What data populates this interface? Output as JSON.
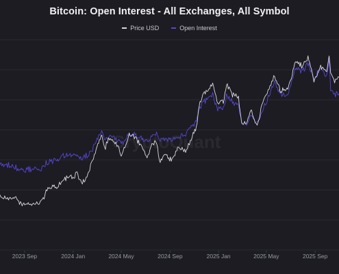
{
  "chart_data": {
    "type": "line",
    "title": "Bitcoin: Open Interest - All Exchanges, All Symbol",
    "watermark": "CryptoQuant",
    "legend_position": "top-center",
    "grid": "horizontal",
    "x_tick_labels": [
      "2023 Sep",
      "2024 Jan",
      "2024 May",
      "2024 Sep",
      "2025 Jan",
      "2025 May",
      "2025 Sep"
    ],
    "x_range": [
      "2023-07-01",
      "2025-10-31"
    ],
    "series": [
      {
        "name": "Price USD",
        "color": "#d9d9de",
        "x": [
          "2023-07-01",
          "2023-07-20",
          "2023-08-10",
          "2023-08-17",
          "2023-08-30",
          "2023-09-10",
          "2023-09-25",
          "2023-10-10",
          "2023-10-20",
          "2023-10-25",
          "2023-11-10",
          "2023-11-25",
          "2023-12-05",
          "2023-12-20",
          "2024-01-05",
          "2024-01-11",
          "2024-01-22",
          "2024-02-05",
          "2024-02-14",
          "2024-02-28",
          "2024-03-05",
          "2024-03-13",
          "2024-03-20",
          "2024-04-01",
          "2024-04-13",
          "2024-04-25",
          "2024-05-01",
          "2024-05-15",
          "2024-05-21",
          "2024-06-05",
          "2024-06-20",
          "2024-07-05",
          "2024-07-15",
          "2024-07-29",
          "2024-08-05",
          "2024-08-20",
          "2024-09-06",
          "2024-09-20",
          "2024-10-10",
          "2024-10-29",
          "2024-11-06",
          "2024-11-13",
          "2024-11-22",
          "2024-12-05",
          "2024-12-17",
          "2024-12-30",
          "2025-01-13",
          "2025-01-21",
          "2025-02-05",
          "2025-02-20",
          "2025-02-28",
          "2025-03-10",
          "2025-03-25",
          "2025-04-08",
          "2025-04-22",
          "2025-05-08",
          "2025-05-22",
          "2025-06-05",
          "2025-06-22",
          "2025-07-03",
          "2025-07-14",
          "2025-07-31",
          "2025-08-14",
          "2025-08-29",
          "2025-09-15",
          "2025-09-30",
          "2025-10-06",
          "2025-10-10",
          "2025-10-20",
          "2025-10-31"
        ],
        "values": [
          30300,
          29900,
          29400,
          26500,
          26000,
          25900,
          26300,
          27000,
          29900,
          34500,
          36500,
          37800,
          42000,
          43500,
          44500,
          46500,
          39800,
          42600,
          51000,
          62000,
          66000,
          72000,
          62500,
          70000,
          67000,
          63500,
          58000,
          66000,
          71000,
          70500,
          64500,
          57000,
          64000,
          67500,
          53500,
          59000,
          53800,
          63000,
          61000,
          72000,
          75500,
          90500,
          98500,
          101000,
          106000,
          92000,
          94000,
          106000,
          98500,
          96500,
          79500,
          78500,
          88000,
          76300,
          93500,
          103000,
          111000,
          101000,
          101500,
          109000,
          121000,
          117000,
          123500,
          108000,
          116500,
          114000,
          124500,
          112000,
          108000,
          110000
        ]
      },
      {
        "name": "Open Interest",
        "color": "#5747d6",
        "x": [
          "2023-07-01",
          "2023-07-20",
          "2023-08-10",
          "2023-08-17",
          "2023-08-30",
          "2023-09-10",
          "2023-09-25",
          "2023-10-10",
          "2023-10-20",
          "2023-10-25",
          "2023-11-10",
          "2023-11-25",
          "2023-12-05",
          "2023-12-20",
          "2024-01-05",
          "2024-01-11",
          "2024-01-22",
          "2024-02-05",
          "2024-02-14",
          "2024-02-28",
          "2024-03-05",
          "2024-03-13",
          "2024-03-20",
          "2024-04-01",
          "2024-04-13",
          "2024-04-25",
          "2024-05-01",
          "2024-05-15",
          "2024-05-21",
          "2024-06-05",
          "2024-06-20",
          "2024-07-05",
          "2024-07-15",
          "2024-07-29",
          "2024-08-05",
          "2024-08-20",
          "2024-09-06",
          "2024-09-20",
          "2024-10-10",
          "2024-10-29",
          "2024-11-06",
          "2024-11-13",
          "2024-11-22",
          "2024-12-05",
          "2024-12-17",
          "2024-12-30",
          "2025-01-13",
          "2025-01-21",
          "2025-02-05",
          "2025-02-20",
          "2025-02-28",
          "2025-03-10",
          "2025-03-25",
          "2025-04-08",
          "2025-04-22",
          "2025-05-08",
          "2025-05-22",
          "2025-06-05",
          "2025-06-22",
          "2025-07-03",
          "2025-07-14",
          "2025-07-31",
          "2025-08-14",
          "2025-08-29",
          "2025-09-15",
          "2025-09-30",
          "2025-10-06",
          "2025-10-10",
          "2025-10-20",
          "2025-10-31"
        ],
        "values": [
          12000,
          11900,
          11500,
          10300,
          10000,
          9900,
          10100,
          10300,
          11800,
          12600,
          13400,
          14000,
          15600,
          15800,
          16200,
          15800,
          14600,
          15400,
          17000,
          21500,
          24000,
          25500,
          22000,
          23500,
          22700,
          21800,
          20300,
          22700,
          24500,
          24300,
          22500,
          21300,
          23300,
          24700,
          21500,
          23000,
          21500,
          23600,
          24500,
          28000,
          30000,
          34000,
          37200,
          38500,
          40000,
          34000,
          35000,
          40000,
          37000,
          36000,
          29000,
          28000,
          32000,
          29000,
          33500,
          40000,
          45000,
          40500,
          40000,
          45000,
          51000,
          49000,
          53000,
          46000,
          50500,
          47000,
          55000,
          42000,
          40000,
          40500
        ]
      }
    ]
  }
}
